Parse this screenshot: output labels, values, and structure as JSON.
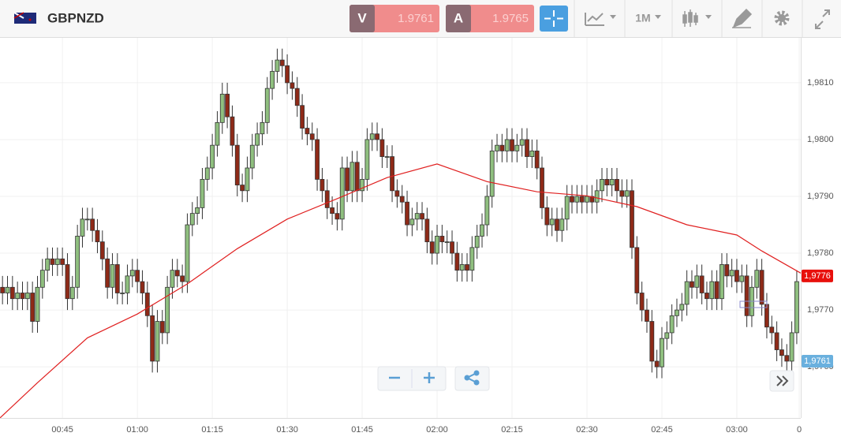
{
  "toolbar": {
    "symbol": "GBPNZD",
    "sell": {
      "letter": "V",
      "price": "1.9761"
    },
    "buy": {
      "letter": "A",
      "price": "1.9765"
    },
    "timeframe": "1M"
  },
  "chart_data": {
    "type": "candlestick",
    "up_color": "#8fbf7f",
    "down_color": "#8e2a18",
    "grid": true,
    "xlim": [
      32.5,
      192.8
    ],
    "ylim": [
      1.9751,
      1.98179
    ],
    "xticks": [
      {
        "value": 45,
        "label": "00:45"
      },
      {
        "value": 60,
        "label": "01:00"
      },
      {
        "value": 75,
        "label": "01:15"
      },
      {
        "value": 90,
        "label": "01:30"
      },
      {
        "value": 105,
        "label": "01:45"
      },
      {
        "value": 120,
        "label": "02:00"
      },
      {
        "value": 135,
        "label": "02:15"
      },
      {
        "value": 150,
        "label": "02:30"
      },
      {
        "value": 165,
        "label": "02:45"
      },
      {
        "value": 180,
        "label": "03:00"
      },
      {
        "value": 192.5,
        "label": "0"
      }
    ],
    "yticks": [
      {
        "value": 1.981,
        "label": "1,9810"
      },
      {
        "value": 1.98,
        "label": "1,9800"
      },
      {
        "value": 1.979,
        "label": "1,9790"
      },
      {
        "value": 1.978,
        "label": "1,9780"
      },
      {
        "value": 1.977,
        "label": "1,9770"
      },
      {
        "value": 1.976,
        "label": "1,9760"
      }
    ],
    "x": [
      33,
      34,
      35,
      36,
      37,
      38,
      39,
      40,
      41,
      42,
      43,
      44,
      45,
      46,
      47,
      48,
      49,
      50,
      51,
      52,
      53,
      54,
      55,
      56,
      57,
      58,
      59,
      60,
      61,
      62,
      63,
      64,
      65,
      66,
      67,
      68,
      69,
      70,
      71,
      72,
      73,
      74,
      75,
      76,
      77,
      78,
      79,
      80,
      81,
      82,
      83,
      84,
      85,
      86,
      87,
      88,
      89,
      90,
      91,
      92,
      93,
      94,
      95,
      96,
      97,
      98,
      99,
      100,
      101,
      102,
      103,
      104,
      105,
      106,
      107,
      108,
      109,
      110,
      111,
      112,
      113,
      114,
      115,
      116,
      117,
      118,
      119,
      120,
      121,
      122,
      123,
      124,
      125,
      126,
      127,
      128,
      129,
      130,
      131,
      132,
      133,
      134,
      135,
      136,
      137,
      138,
      139,
      140,
      141,
      142,
      143,
      144,
      145,
      146,
      147,
      148,
      149,
      150,
      151,
      152,
      153,
      154,
      155,
      156,
      157,
      158,
      159,
      160,
      161,
      162,
      163,
      164,
      165,
      166,
      167,
      168,
      169,
      170,
      171,
      172,
      173,
      174,
      175,
      176,
      177,
      178,
      179,
      180,
      181,
      182,
      183,
      184,
      185,
      186,
      187,
      188,
      189,
      190,
      191,
      192
    ],
    "open": [
      1.9774,
      1.9773,
      1.9774,
      1.9772,
      1.9773,
      1.9772,
      1.9773,
      1.9768,
      1.9774,
      1.9777,
      1.9779,
      1.9778,
      1.9779,
      1.9778,
      1.9772,
      1.9774,
      1.9783,
      1.9786,
      1.9786,
      1.9784,
      1.9782,
      1.9779,
      1.9774,
      1.9778,
      1.9773,
      1.9773,
      1.9776,
      1.9777,
      1.9775,
      1.9773,
      1.9769,
      1.9761,
      1.9768,
      1.9766,
      1.9774,
      1.9777,
      1.9776,
      1.9775,
      1.9785,
      1.9787,
      1.9788,
      1.9793,
      1.9795,
      1.9799,
      1.9803,
      1.9808,
      1.9804,
      1.9799,
      1.9792,
      1.9791,
      1.9795,
      1.9799,
      1.9801,
      1.9803,
      1.9809,
      1.9812,
      1.9814,
      1.9813,
      1.981,
      1.9809,
      1.9806,
      1.9802,
      1.9801,
      1.98,
      1.9793,
      1.9791,
      1.9788,
      1.9787,
      1.9786,
      1.9795,
      1.9791,
      1.9796,
      1.9791,
      1.9793,
      1.98,
      1.9801,
      1.98,
      1.9797,
      1.9797,
      1.9791,
      1.979,
      1.9789,
      1.9785,
      1.9786,
      1.9787,
      1.9786,
      1.9782,
      1.978,
      1.9783,
      1.9782,
      1.9782,
      1.978,
      1.9777,
      1.9778,
      1.9777,
      1.9781,
      1.9783,
      1.9785,
      1.979,
      1.9798,
      1.9799,
      1.9798,
      1.98,
      1.9798,
      1.9799,
      1.98,
      1.9797,
      1.9798,
      1.9795,
      1.9788,
      1.9785,
      1.9786,
      1.9784,
      1.9786,
      1.979,
      1.9789,
      1.979,
      1.9789,
      1.979,
      1.9789,
      1.9791,
      1.9793,
      1.9792,
      1.9793,
      1.9791,
      1.979,
      1.9791,
      1.9781,
      1.9773,
      1.977,
      1.9768,
      1.9761,
      1.976,
      1.9765,
      1.9766,
      1.9769,
      1.977,
      1.9771,
      1.9775,
      1.9774,
      1.9776,
      1.9773,
      1.9772,
      1.9775,
      1.9772,
      1.9778,
      1.9776,
      1.9777,
      1.9775,
      1.9776,
      1.9769,
      1.9774,
      1.9777,
      1.9771,
      1.9767,
      1.9766,
      1.9763,
      1.9762,
      1.9761,
      1.9766
    ],
    "high": [
      1.9776,
      1.9776,
      1.9776,
      1.9775,
      1.9775,
      1.9775,
      1.9775,
      1.9776,
      1.9779,
      1.9781,
      1.9781,
      1.9781,
      1.9781,
      1.978,
      1.9776,
      1.9785,
      1.9788,
      1.9788,
      1.9788,
      1.9786,
      1.9784,
      1.9781,
      1.978,
      1.978,
      1.9775,
      1.9778,
      1.9779,
      1.9779,
      1.9777,
      1.9775,
      1.9771,
      1.977,
      1.977,
      1.9776,
      1.9779,
      1.9779,
      1.9778,
      1.9787,
      1.9789,
      1.979,
      1.9795,
      1.9797,
      1.9801,
      1.9805,
      1.981,
      1.981,
      1.9806,
      1.9801,
      1.9794,
      1.9797,
      1.9801,
      1.9803,
      1.9805,
      1.9811,
      1.9814,
      1.9816,
      1.9816,
      1.9815,
      1.9812,
      1.9811,
      1.9808,
      1.9804,
      1.9803,
      1.9802,
      1.9795,
      1.9793,
      1.979,
      1.9789,
      1.9797,
      1.9797,
      1.9798,
      1.9798,
      1.9795,
      1.9802,
      1.9803,
      1.9803,
      1.9802,
      1.9799,
      1.9799,
      1.9793,
      1.9792,
      1.9791,
      1.9788,
      1.9789,
      1.9789,
      1.9788,
      1.9784,
      1.9785,
      1.9785,
      1.9784,
      1.9784,
      1.9782,
      1.978,
      1.978,
      1.9783,
      1.9785,
      1.9787,
      1.9792,
      1.98,
      1.9801,
      1.9801,
      1.9802,
      1.9802,
      1.9801,
      1.9802,
      1.9802,
      1.98,
      1.98,
      1.9797,
      1.979,
      1.9788,
      1.9788,
      1.9788,
      1.9792,
      1.9792,
      1.9792,
      1.9792,
      1.9792,
      1.9792,
      1.9793,
      1.9795,
      1.9795,
      1.9795,
      1.9795,
      1.9793,
      1.9793,
      1.9793,
      1.9783,
      1.9775,
      1.9772,
      1.977,
      1.9763,
      1.9767,
      1.9768,
      1.9771,
      1.9772,
      1.9773,
      1.9777,
      1.9777,
      1.9778,
      1.9778,
      1.9775,
      1.9777,
      1.9777,
      1.978,
      1.978,
      1.9779,
      1.9779,
      1.9778,
      1.9778,
      1.9776,
      1.9779,
      1.9779,
      1.9773,
      1.9769,
      1.9768,
      1.9765,
      1.9764,
      1.9768,
      1.9777
    ],
    "low": [
      1.9771,
      1.9771,
      1.977,
      1.977,
      1.977,
      1.977,
      1.9766,
      1.9766,
      1.9772,
      1.9775,
      1.9776,
      1.9776,
      1.9776,
      1.977,
      1.977,
      1.9772,
      1.9781,
      1.9784,
      1.9782,
      1.978,
      1.9777,
      1.9772,
      1.9772,
      1.9771,
      1.9771,
      1.9771,
      1.9774,
      1.9773,
      1.9771,
      1.9767,
      1.9759,
      1.9759,
      1.9764,
      1.9764,
      1.9772,
      1.9774,
      1.9773,
      1.9773,
      1.9783,
      1.9785,
      1.9786,
      1.9791,
      1.9793,
      1.9797,
      1.9801,
      1.9802,
      1.9797,
      1.979,
      1.9789,
      1.9789,
      1.9793,
      1.9797,
      1.9799,
      1.9801,
      1.9807,
      1.981,
      1.9811,
      1.9808,
      1.9807,
      1.9804,
      1.98,
      1.9799,
      1.9798,
      1.9791,
      1.9789,
      1.9786,
      1.9785,
      1.9784,
      1.9784,
      1.9789,
      1.9789,
      1.9789,
      1.9789,
      1.9791,
      1.9798,
      1.9798,
      1.9795,
      1.9795,
      1.9789,
      1.9788,
      1.9787,
      1.9783,
      1.9783,
      1.9784,
      1.9784,
      1.978,
      1.9778,
      1.9778,
      1.978,
      1.978,
      1.9778,
      1.9775,
      1.9775,
      1.9775,
      1.9775,
      1.9779,
      1.9781,
      1.9783,
      1.9788,
      1.9796,
      1.9796,
      1.9796,
      1.9796,
      1.9796,
      1.9797,
      1.9795,
      1.9795,
      1.9793,
      1.9786,
      1.9783,
      1.9783,
      1.9782,
      1.9782,
      1.9784,
      1.9787,
      1.9787,
      1.9787,
      1.9787,
      1.9787,
      1.9787,
      1.9789,
      1.979,
      1.979,
      1.9789,
      1.9788,
      1.9788,
      1.9779,
      1.9771,
      1.9768,
      1.9766,
      1.9759,
      1.9758,
      1.9758,
      1.9763,
      1.9764,
      1.9767,
      1.9768,
      1.9769,
      1.9772,
      1.9772,
      1.9771,
      1.977,
      1.977,
      1.977,
      1.977,
      1.9774,
      1.9774,
      1.9773,
      1.9773,
      1.9767,
      1.9767,
      1.9772,
      1.9769,
      1.9765,
      1.9764,
      1.9761,
      1.976,
      1.9759,
      1.9759,
      1.9764
    ],
    "close": [
      1.9773,
      1.9774,
      1.9772,
      1.9773,
      1.9772,
      1.9773,
      1.9768,
      1.9774,
      1.9777,
      1.9779,
      1.9778,
      1.9779,
      1.9778,
      1.9772,
      1.9774,
      1.9783,
      1.9786,
      1.9786,
      1.9784,
      1.9782,
      1.9779,
      1.9774,
      1.9778,
      1.9773,
      1.9773,
      1.9776,
      1.9777,
      1.9775,
      1.9773,
      1.9769,
      1.9761,
      1.9768,
      1.9766,
      1.9774,
      1.9777,
      1.9776,
      1.9775,
      1.9785,
      1.9787,
      1.9788,
      1.9793,
      1.9795,
      1.9799,
      1.9803,
      1.9808,
      1.9804,
      1.9799,
      1.9792,
      1.9791,
      1.9795,
      1.9799,
      1.9801,
      1.9803,
      1.9809,
      1.9812,
      1.9814,
      1.9813,
      1.981,
      1.9809,
      1.9806,
      1.9802,
      1.9801,
      1.98,
      1.9793,
      1.9791,
      1.9788,
      1.9787,
      1.9786,
      1.9795,
      1.9791,
      1.9796,
      1.9791,
      1.9793,
      1.98,
      1.9801,
      1.98,
      1.9797,
      1.9797,
      1.9791,
      1.979,
      1.9789,
      1.9785,
      1.9786,
      1.9787,
      1.9786,
      1.9782,
      1.978,
      1.9783,
      1.9782,
      1.9782,
      1.978,
      1.9777,
      1.9778,
      1.9777,
      1.9781,
      1.9783,
      1.9785,
      1.979,
      1.9798,
      1.9799,
      1.9798,
      1.98,
      1.9798,
      1.9799,
      1.98,
      1.9797,
      1.9798,
      1.9795,
      1.9788,
      1.9785,
      1.9786,
      1.9784,
      1.9786,
      1.979,
      1.9789,
      1.979,
      1.9789,
      1.979,
      1.9789,
      1.9791,
      1.9793,
      1.9792,
      1.9793,
      1.9791,
      1.979,
      1.9791,
      1.9781,
      1.9773,
      1.977,
      1.9768,
      1.9761,
      1.976,
      1.9765,
      1.9766,
      1.9769,
      1.977,
      1.9771,
      1.9775,
      1.9774,
      1.9776,
      1.9773,
      1.9772,
      1.9775,
      1.9772,
      1.9778,
      1.9776,
      1.9777,
      1.9775,
      1.9776,
      1.9769,
      1.9774,
      1.9777,
      1.9771,
      1.9767,
      1.9766,
      1.9763,
      1.9762,
      1.9761,
      1.9766,
      1.9775
    ],
    "ma": {
      "color": "#e02020",
      "x": [
        32.5,
        40,
        50,
        60,
        70,
        80,
        90,
        100,
        110,
        120,
        130,
        140,
        150,
        160,
        170,
        180,
        185,
        192.8
      ],
      "values": [
        1.9751,
        1.97572,
        1.97651,
        1.97693,
        1.97746,
        1.97808,
        1.9786,
        1.97896,
        1.97933,
        1.97957,
        1.97926,
        1.97908,
        1.97901,
        1.97882,
        1.9785,
        1.97832,
        1.97804,
        1.97765
      ]
    },
    "price_labels": [
      {
        "value": 1.9776,
        "label": "1,9776",
        "color": "#e8100c"
      },
      {
        "value": 1.9761,
        "label": "1,9761",
        "color": "#6ab0de"
      }
    ]
  }
}
